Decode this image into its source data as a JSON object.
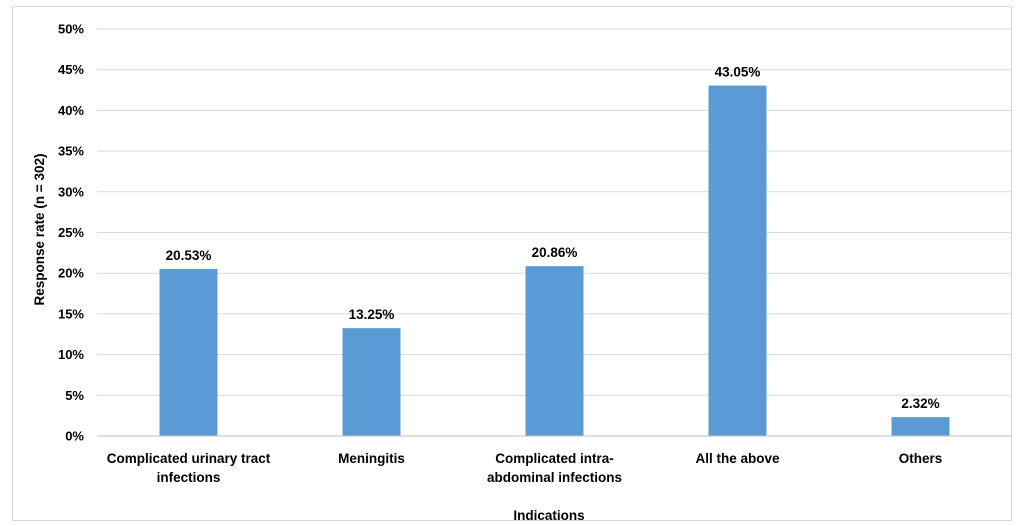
{
  "chart_data": {
    "type": "bar",
    "title": "",
    "xlabel": "Indications",
    "ylabel": "Response rate (n = 302)",
    "ylim": [
      0,
      0.5
    ],
    "yticks": [
      {
        "value": 0.0,
        "label": "0%"
      },
      {
        "value": 0.05,
        "label": "5%"
      },
      {
        "value": 0.1,
        "label": "10%"
      },
      {
        "value": 0.15,
        "label": "15%"
      },
      {
        "value": 0.2,
        "label": "20%"
      },
      {
        "value": 0.25,
        "label": "25%"
      },
      {
        "value": 0.3,
        "label": "30%"
      },
      {
        "value": 0.35,
        "label": "35%"
      },
      {
        "value": 0.4,
        "label": "40%"
      },
      {
        "value": 0.45,
        "label": "45%"
      },
      {
        "value": 0.5,
        "label": "50%"
      }
    ],
    "categories": [
      {
        "lines": [
          "Complicated urinary tract",
          "infections"
        ]
      },
      {
        "lines": [
          "Meningitis"
        ]
      },
      {
        "lines": [
          "Complicated intra-",
          "abdominal infections"
        ]
      },
      {
        "lines": [
          "All the above"
        ]
      },
      {
        "lines": [
          "Others"
        ]
      }
    ],
    "values": [
      0.2053,
      0.1325,
      0.2086,
      0.4305,
      0.0232
    ],
    "data_labels": [
      "20.53%",
      "13.25%",
      "20.86%",
      "43.05%",
      "2.32%"
    ],
    "grid": true,
    "legend": "none",
    "bar_color": "#5b9bd5",
    "grid_color": "#d9d9d9"
  }
}
